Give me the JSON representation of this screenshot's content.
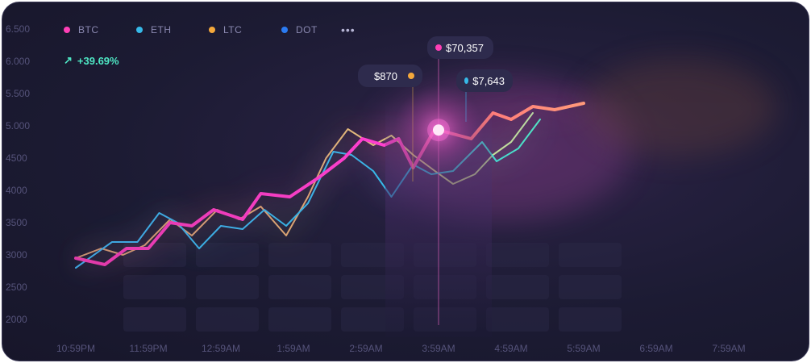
{
  "legend": [
    {
      "name": "BTC",
      "color": "#ff3fb6"
    },
    {
      "name": "ETH",
      "color": "#36b9e8"
    },
    {
      "name": "LTC",
      "color": "#f4a83b"
    },
    {
      "name": "DOT",
      "color": "#2b7bf2"
    }
  ],
  "more_label": "•••",
  "change": {
    "icon": "arrow-up-right-icon",
    "text": "+39.69%"
  },
  "tooltips": {
    "btc": "$70,357",
    "ltc": "$870",
    "eth": "$7,643"
  },
  "chart_data": {
    "type": "line",
    "x": [
      "10:59PM",
      "11:59PM",
      "12:59AM",
      "1:59AM",
      "2:59AM",
      "3:59AM",
      "4:59AM",
      "5:59AM",
      "6:59AM",
      "7:59AM"
    ],
    "y_ticks": [
      "6.500",
      "6.000",
      "5.500",
      "5.000",
      "4500",
      "4000",
      "3500",
      "3000",
      "2500",
      "2000"
    ],
    "ylim": [
      2000,
      6500
    ],
    "grid": false,
    "legend_position": "top-left",
    "series": [
      {
        "name": "BTC",
        "color": "#ff3fb6",
        "points": [
          [
            0,
            2950
          ],
          [
            0.4,
            2850
          ],
          [
            0.7,
            3100
          ],
          [
            1.0,
            3100
          ],
          [
            1.3,
            3500
          ],
          [
            1.6,
            3450
          ],
          [
            1.9,
            3700
          ],
          [
            2.3,
            3550
          ],
          [
            2.55,
            3950
          ],
          [
            2.95,
            3900
          ],
          [
            3.35,
            4200
          ],
          [
            3.7,
            4500
          ],
          [
            3.95,
            4800
          ],
          [
            4.25,
            4700
          ],
          [
            4.45,
            4800
          ],
          [
            4.65,
            4350
          ],
          [
            4.95,
            4950
          ],
          [
            5.45,
            4800
          ],
          [
            5.75,
            5200
          ],
          [
            6.0,
            5100
          ],
          [
            6.3,
            5300
          ],
          [
            6.6,
            5250
          ],
          [
            7.0,
            5350
          ]
        ]
      },
      {
        "name": "ETH",
        "color": "#36b9e8",
        "points": [
          [
            0,
            2800
          ],
          [
            0.5,
            3200
          ],
          [
            0.85,
            3200
          ],
          [
            1.15,
            3650
          ],
          [
            1.4,
            3500
          ],
          [
            1.7,
            3100
          ],
          [
            2.0,
            3450
          ],
          [
            2.3,
            3400
          ],
          [
            2.6,
            3700
          ],
          [
            2.9,
            3450
          ],
          [
            3.2,
            3800
          ],
          [
            3.55,
            4600
          ],
          [
            3.8,
            4550
          ],
          [
            4.1,
            4300
          ],
          [
            4.35,
            3900
          ],
          [
            4.65,
            4400
          ],
          [
            4.9,
            4250
          ],
          [
            5.2,
            4300
          ],
          [
            5.6,
            4750
          ],
          [
            5.8,
            4450
          ],
          [
            6.1,
            4650
          ],
          [
            6.4,
            5100
          ]
        ]
      },
      {
        "name": "LTC",
        "color": "#f4a83b",
        "points": [
          [
            0,
            2950
          ],
          [
            0.35,
            3100
          ],
          [
            0.65,
            3000
          ],
          [
            0.95,
            3150
          ],
          [
            1.3,
            3550
          ],
          [
            1.6,
            3300
          ],
          [
            1.95,
            3700
          ],
          [
            2.25,
            3550
          ],
          [
            2.55,
            3750
          ],
          [
            2.9,
            3300
          ],
          [
            3.2,
            3900
          ],
          [
            3.45,
            4500
          ],
          [
            3.75,
            4950
          ],
          [
            4.1,
            4700
          ],
          [
            4.35,
            4850
          ],
          [
            4.65,
            4550
          ],
          [
            4.95,
            4300
          ],
          [
            5.2,
            4100
          ],
          [
            5.5,
            4250
          ],
          [
            5.75,
            4550
          ],
          [
            6.0,
            4750
          ],
          [
            6.3,
            5200
          ]
        ]
      }
    ],
    "cursor_x": "3:59AM"
  }
}
